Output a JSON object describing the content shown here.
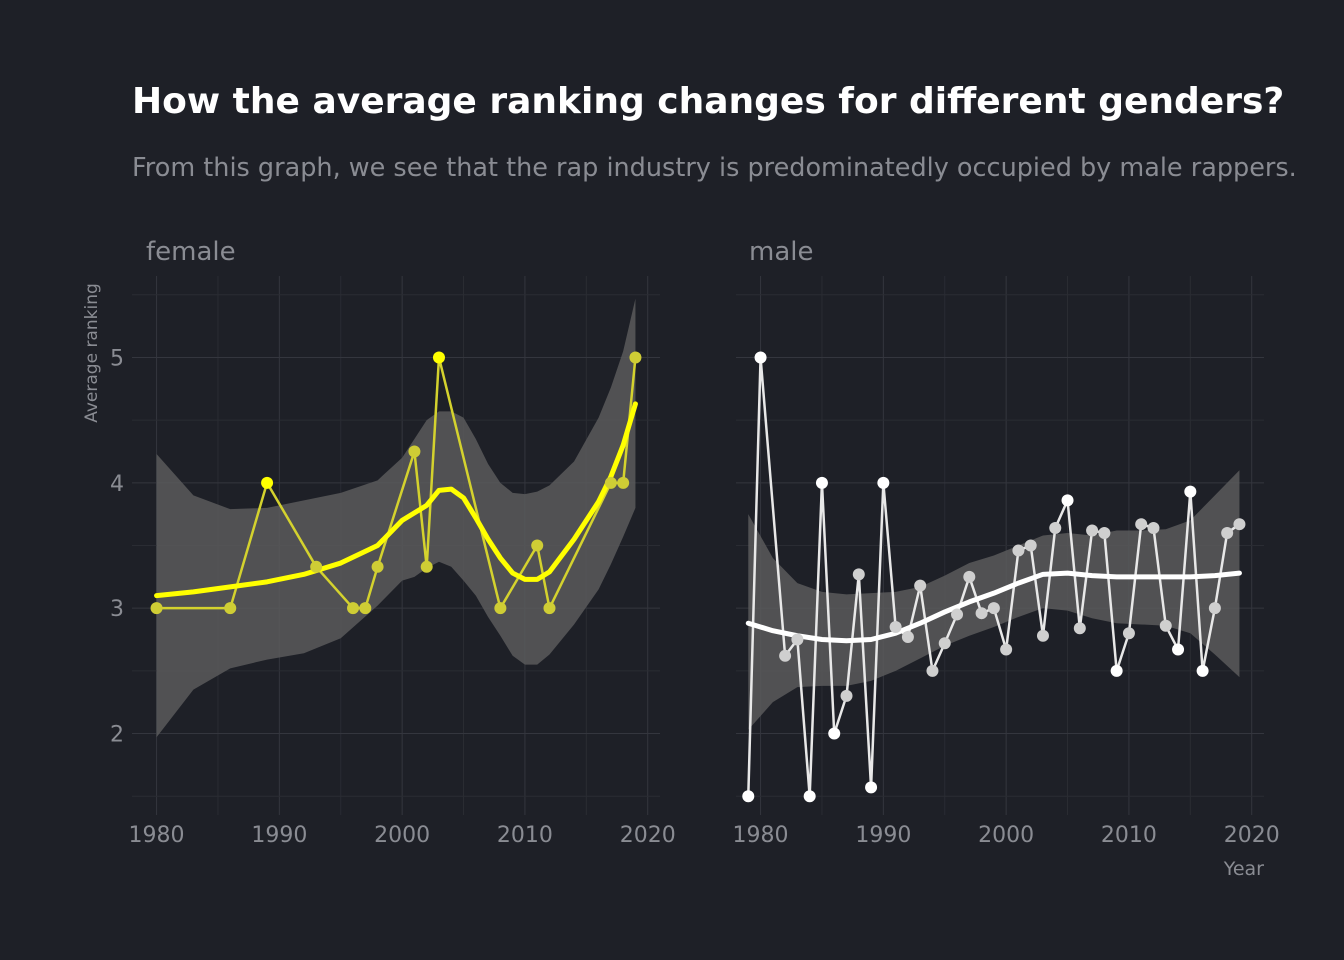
{
  "chart_data": {
    "type": "line",
    "title": "How the average ranking changes for different genders?",
    "subtitle": "From this graph, we see that the rap industry is predominatedly occupied by male rappers.",
    "xlabel": "Year",
    "ylabel": "Average ranking",
    "xlim": [
      1978,
      2021
    ],
    "ylim": [
      1.35,
      5.65
    ],
    "x_ticks": [
      1980,
      1990,
      2000,
      2010,
      2020
    ],
    "y_ticks": [
      2,
      3,
      4,
      5
    ],
    "grid": true,
    "smoother": "loess trend line with shaded confidence band",
    "panels": [
      {
        "label": "female",
        "color": "#ffff00",
        "points": [
          {
            "x": 1980,
            "y": 3.0
          },
          {
            "x": 1986,
            "y": 3.0
          },
          {
            "x": 1989,
            "y": 4.0
          },
          {
            "x": 1993,
            "y": 3.33
          },
          {
            "x": 1996,
            "y": 3.0
          },
          {
            "x": 1997,
            "y": 3.0
          },
          {
            "x": 1998,
            "y": 3.33
          },
          {
            "x": 2001,
            "y": 4.25
          },
          {
            "x": 2002,
            "y": 3.33
          },
          {
            "x": 2003,
            "y": 5.0
          },
          {
            "x": 2008,
            "y": 3.0
          },
          {
            "x": 2011,
            "y": 3.5
          },
          {
            "x": 2012,
            "y": 3.0
          },
          {
            "x": 2017,
            "y": 4.0
          },
          {
            "x": 2018,
            "y": 4.0
          },
          {
            "x": 2019,
            "y": 5.0
          }
        ],
        "trend": [
          {
            "x": 1980,
            "y": 3.1,
            "lo": 1.97,
            "hi": 4.23
          },
          {
            "x": 1983,
            "y": 3.13,
            "lo": 2.35,
            "hi": 3.9
          },
          {
            "x": 1986,
            "y": 3.17,
            "lo": 2.52,
            "hi": 3.79
          },
          {
            "x": 1989,
            "y": 3.21,
            "lo": 2.59,
            "hi": 3.8
          },
          {
            "x": 1992,
            "y": 3.27,
            "lo": 2.64,
            "hi": 3.86
          },
          {
            "x": 1995,
            "y": 3.36,
            "lo": 2.76,
            "hi": 3.92
          },
          {
            "x": 1998,
            "y": 3.5,
            "lo": 3.02,
            "hi": 4.02
          },
          {
            "x": 2000,
            "y": 3.7,
            "lo": 3.22,
            "hi": 4.2
          },
          {
            "x": 2001,
            "y": 3.76,
            "lo": 3.25,
            "hi": 4.35
          },
          {
            "x": 2002,
            "y": 3.82,
            "lo": 3.32,
            "hi": 4.5
          },
          {
            "x": 2003,
            "y": 3.94,
            "lo": 3.37,
            "hi": 4.57
          },
          {
            "x": 2004,
            "y": 3.95,
            "lo": 3.33,
            "hi": 4.57
          },
          {
            "x": 2005,
            "y": 3.88,
            "lo": 3.22,
            "hi": 4.52
          },
          {
            "x": 2006,
            "y": 3.72,
            "lo": 3.1,
            "hi": 4.35
          },
          {
            "x": 2007,
            "y": 3.55,
            "lo": 2.93,
            "hi": 4.15
          },
          {
            "x": 2008,
            "y": 3.4,
            "lo": 2.78,
            "hi": 4.0
          },
          {
            "x": 2009,
            "y": 3.28,
            "lo": 2.62,
            "hi": 3.92
          },
          {
            "x": 2010,
            "y": 3.23,
            "lo": 2.55,
            "hi": 3.91
          },
          {
            "x": 2011,
            "y": 3.23,
            "lo": 2.55,
            "hi": 3.93
          },
          {
            "x": 2012,
            "y": 3.29,
            "lo": 2.63,
            "hi": 3.98
          },
          {
            "x": 2014,
            "y": 3.55,
            "lo": 2.87,
            "hi": 4.17
          },
          {
            "x": 2016,
            "y": 3.85,
            "lo": 3.15,
            "hi": 4.52
          },
          {
            "x": 2017,
            "y": 4.05,
            "lo": 3.35,
            "hi": 4.76
          },
          {
            "x": 2018,
            "y": 4.3,
            "lo": 3.57,
            "hi": 5.05
          },
          {
            "x": 2019,
            "y": 4.63,
            "lo": 3.8,
            "hi": 5.47
          }
        ]
      },
      {
        "label": "male",
        "color": "#ffffff",
        "points": [
          {
            "x": 1979,
            "y": 1.5
          },
          {
            "x": 1980,
            "y": 5.0
          },
          {
            "x": 1982,
            "y": 2.62
          },
          {
            "x": 1983,
            "y": 2.75
          },
          {
            "x": 1984,
            "y": 1.5
          },
          {
            "x": 1985,
            "y": 4.0
          },
          {
            "x": 1986,
            "y": 2.0
          },
          {
            "x": 1987,
            "y": 2.3
          },
          {
            "x": 1988,
            "y": 3.27
          },
          {
            "x": 1989,
            "y": 1.57
          },
          {
            "x": 1990,
            "y": 4.0
          },
          {
            "x": 1991,
            "y": 2.85
          },
          {
            "x": 1992,
            "y": 2.77
          },
          {
            "x": 1993,
            "y": 3.18
          },
          {
            "x": 1994,
            "y": 2.5
          },
          {
            "x": 1995,
            "y": 2.72
          },
          {
            "x": 1996,
            "y": 2.95
          },
          {
            "x": 1997,
            "y": 3.25
          },
          {
            "x": 1998,
            "y": 2.96
          },
          {
            "x": 1999,
            "y": 3.0
          },
          {
            "x": 2000,
            "y": 2.67
          },
          {
            "x": 2001,
            "y": 3.46
          },
          {
            "x": 2002,
            "y": 3.5
          },
          {
            "x": 2003,
            "y": 2.78
          },
          {
            "x": 2004,
            "y": 3.64
          },
          {
            "x": 2005,
            "y": 3.86
          },
          {
            "x": 2006,
            "y": 2.84
          },
          {
            "x": 2007,
            "y": 3.62
          },
          {
            "x": 2008,
            "y": 3.6
          },
          {
            "x": 2009,
            "y": 2.5
          },
          {
            "x": 2010,
            "y": 2.8
          },
          {
            "x": 2011,
            "y": 3.67
          },
          {
            "x": 2012,
            "y": 3.64
          },
          {
            "x": 2013,
            "y": 2.86
          },
          {
            "x": 2014,
            "y": 2.67
          },
          {
            "x": 2015,
            "y": 3.93
          },
          {
            "x": 2016,
            "y": 2.5
          },
          {
            "x": 2017,
            "y": 3.0
          },
          {
            "x": 2018,
            "y": 3.6
          },
          {
            "x": 2019,
            "y": 3.67
          }
        ],
        "trend": [
          {
            "x": 1979,
            "y": 2.88,
            "lo": 2.03,
            "hi": 3.75
          },
          {
            "x": 1981,
            "y": 2.82,
            "lo": 2.25,
            "hi": 3.4
          },
          {
            "x": 1983,
            "y": 2.78,
            "lo": 2.37,
            "hi": 3.2
          },
          {
            "x": 1985,
            "y": 2.75,
            "lo": 2.38,
            "hi": 3.13
          },
          {
            "x": 1987,
            "y": 2.74,
            "lo": 2.38,
            "hi": 3.11
          },
          {
            "x": 1989,
            "y": 2.75,
            "lo": 2.42,
            "hi": 3.12
          },
          {
            "x": 1991,
            "y": 2.8,
            "lo": 2.5,
            "hi": 3.13
          },
          {
            "x": 1993,
            "y": 2.88,
            "lo": 2.6,
            "hi": 3.17
          },
          {
            "x": 1995,
            "y": 2.97,
            "lo": 2.7,
            "hi": 3.26
          },
          {
            "x": 1997,
            "y": 3.05,
            "lo": 2.78,
            "hi": 3.36
          },
          {
            "x": 1999,
            "y": 3.12,
            "lo": 2.85,
            "hi": 3.42
          },
          {
            "x": 2001,
            "y": 3.2,
            "lo": 2.93,
            "hi": 3.5
          },
          {
            "x": 2003,
            "y": 3.27,
            "lo": 3.0,
            "hi": 3.58
          },
          {
            "x": 2005,
            "y": 3.28,
            "lo": 2.98,
            "hi": 3.6
          },
          {
            "x": 2007,
            "y": 3.26,
            "lo": 2.92,
            "hi": 3.58
          },
          {
            "x": 2009,
            "y": 3.25,
            "lo": 2.88,
            "hi": 3.62
          },
          {
            "x": 2011,
            "y": 3.25,
            "lo": 2.87,
            "hi": 3.62
          },
          {
            "x": 2013,
            "y": 3.25,
            "lo": 2.86,
            "hi": 3.63
          },
          {
            "x": 2015,
            "y": 3.25,
            "lo": 2.8,
            "hi": 3.7
          },
          {
            "x": 2017,
            "y": 3.26,
            "lo": 2.63,
            "hi": 3.9
          },
          {
            "x": 2019,
            "y": 3.28,
            "lo": 2.45,
            "hi": 4.1
          }
        ]
      }
    ]
  }
}
